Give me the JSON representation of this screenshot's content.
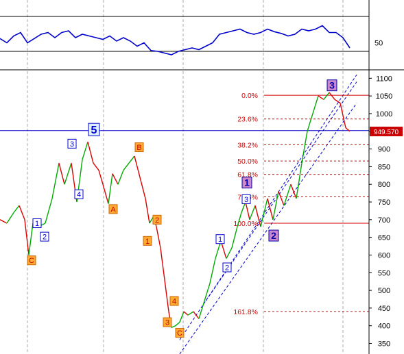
{
  "chart_data": [
    {
      "type": "line",
      "panel": "oscillator",
      "y_tick_labels": [
        "50"
      ],
      "reference_levels": [
        50
      ],
      "line_color": "#0000cc",
      "series": [
        {
          "x": [
            0,
            10,
            20,
            30,
            40,
            50,
            60,
            70,
            80,
            90,
            100,
            110,
            120,
            130,
            140,
            150,
            160,
            170,
            180,
            190,
            200,
            210,
            220,
            230,
            240,
            250,
            260,
            270,
            280,
            290,
            300,
            310,
            320,
            330,
            340,
            350,
            360,
            370,
            380,
            390,
            400,
            410,
            420,
            430,
            440,
            450,
            460,
            470,
            480,
            490,
            500,
            510
          ],
          "values": [
            55,
            50,
            58,
            62,
            50,
            55,
            60,
            62,
            56,
            62,
            64,
            56,
            60,
            58,
            56,
            54,
            58,
            52,
            56,
            52,
            46,
            50,
            41,
            40,
            38,
            36,
            40,
            42,
            44,
            42,
            46,
            50,
            60,
            62,
            64,
            66,
            62,
            60,
            62,
            66,
            63,
            61,
            58,
            60,
            66,
            64,
            66,
            70,
            62,
            62,
            56,
            44
          ]
        }
      ]
    },
    {
      "type": "line",
      "panel": "price",
      "color_up": "#00aa00",
      "color_down": "#dd0000",
      "y_tick_labels": [
        "1100",
        "1050",
        "1000",
        "950",
        "900",
        "850",
        "800",
        "750",
        "700",
        "650",
        "600",
        "550",
        "500",
        "450",
        "400",
        "350"
      ],
      "ylim": [
        320,
        1120
      ],
      "series": [
        {
          "x": [
            0,
            10,
            20,
            28,
            36,
            42,
            48,
            56,
            66,
            76,
            86,
            94,
            104,
            112,
            120,
            128,
            136,
            144,
            150,
            158,
            164,
            172,
            180,
            188,
            196,
            204,
            212,
            218,
            224,
            228,
            234,
            240,
            246,
            250,
            256,
            262,
            268,
            274,
            282,
            290,
            298,
            306,
            314,
            322,
            330,
            338,
            346,
            352,
            358,
            364,
            372,
            380,
            390,
            398,
            406,
            414,
            424,
            432,
            440,
            448,
            456,
            464,
            472,
            480,
            488,
            496,
            504,
            510
          ],
          "values": [
            700,
            690,
            720,
            740,
            700,
            600,
            690,
            680,
            690,
            760,
            860,
            800,
            860,
            750,
            870,
            920,
            860,
            840,
            800,
            745,
            830,
            800,
            840,
            860,
            880,
            820,
            760,
            690,
            710,
            680,
            620,
            530,
            440,
            395,
            400,
            410,
            440,
            430,
            440,
            420,
            470,
            520,
            590,
            640,
            590,
            620,
            680,
            720,
            750,
            700,
            740,
            680,
            760,
            700,
            780,
            740,
            800,
            760,
            860,
            950,
            1000,
            1050,
            1040,
            1060,
            1040,
            1030,
            960,
            950
          ]
        }
      ],
      "current_price_label": "949.570",
      "fib_levels": [
        {
          "label": "0.0%",
          "value": 1052
        },
        {
          "label": "23.6%",
          "value": 985
        },
        {
          "label": "38.2%",
          "value": 912
        },
        {
          "label": "50.0%",
          "value": 866
        },
        {
          "label": "61.8%",
          "value": 828
        },
        {
          "label": "78.6%",
          "value": 765
        },
        {
          "label": "100.0%",
          "value": 690
        },
        {
          "label": "161.8%",
          "value": 440
        }
      ],
      "horizontal_lines": [
        {
          "value": 952,
          "color": "#0000cc"
        }
      ],
      "wave_labels": [
        {
          "text": "5",
          "kind": "major-blue",
          "x": 137,
          "y": 955
        },
        {
          "text": "3",
          "kind": "blue",
          "x": 105,
          "y": 915
        },
        {
          "text": "4",
          "kind": "blue",
          "x": 115,
          "y": 772
        },
        {
          "text": "1",
          "kind": "blue",
          "x": 54,
          "y": 690
        },
        {
          "text": "2",
          "kind": "blue",
          "x": 65,
          "y": 652
        },
        {
          "text": "C",
          "kind": "orange",
          "x": 46,
          "y": 585
        },
        {
          "text": "A",
          "kind": "orange",
          "x": 165,
          "y": 730
        },
        {
          "text": "B",
          "kind": "orange",
          "x": 203,
          "y": 905
        },
        {
          "text": "2",
          "kind": "orange",
          "x": 229,
          "y": 700
        },
        {
          "text": "1",
          "kind": "orange",
          "x": 215,
          "y": 640
        },
        {
          "text": "4",
          "kind": "orange",
          "x": 254,
          "y": 470
        },
        {
          "text": "3",
          "kind": "orange",
          "x": 244,
          "y": 410
        },
        {
          "text": "C",
          "kind": "orange",
          "x": 262,
          "y": 380
        },
        {
          "text": "1",
          "kind": "blue",
          "x": 321,
          "y": 645
        },
        {
          "text": "2",
          "kind": "blue",
          "x": 331,
          "y": 565
        },
        {
          "text": "3",
          "kind": "blue",
          "x": 359,
          "y": 758
        },
        {
          "text": "1",
          "kind": "major-purple",
          "x": 360,
          "y": 805
        },
        {
          "text": "2",
          "kind": "major-purple",
          "x": 399,
          "y": 655
        },
        {
          "text": "3",
          "kind": "major-purple",
          "x": 484,
          "y": 1080
        }
      ]
    }
  ]
}
